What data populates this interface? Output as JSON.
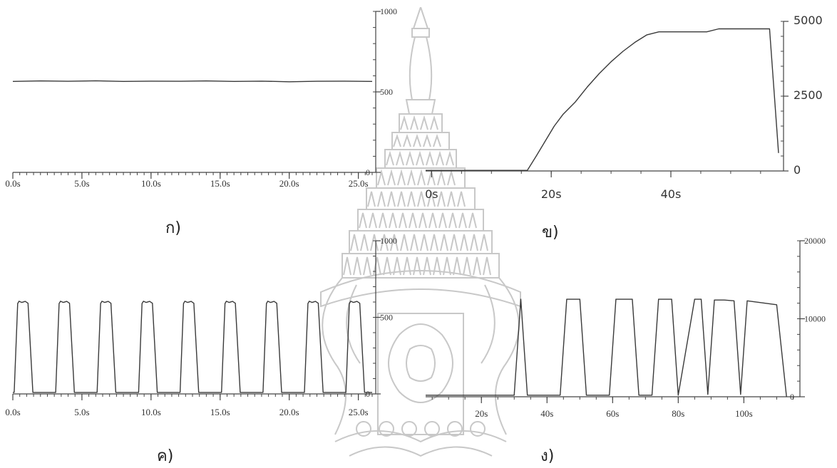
{
  "watermark": {
    "name": "university-seal-icon",
    "color": "#c8c8c8"
  },
  "colors": {
    "line": "#3a3a3a",
    "axis": "#444444"
  },
  "chart_data": [
    {
      "id": "a",
      "type": "line",
      "caption": "ก)",
      "x_ticks": [
        "0.0s",
        "5.0s",
        "10.0s",
        "15.0s",
        "20.0s",
        "25.0s"
      ],
      "x_tick_values": [
        0,
        5,
        10,
        15,
        20,
        25
      ],
      "xlim": [
        0,
        26
      ],
      "y_ticks": [
        "0",
        "500",
        "1000"
      ],
      "y_tick_values": [
        0,
        500,
        1000
      ],
      "ylim": [
        0,
        1000
      ],
      "y_axis_side": "right",
      "series": [
        {
          "x": [
            0,
            2,
            4,
            6,
            8,
            10,
            12,
            14,
            16,
            18,
            20,
            22,
            24,
            26
          ],
          "y": [
            565,
            568,
            566,
            569,
            565,
            567,
            566,
            568,
            565,
            567,
            563,
            566,
            567,
            565
          ]
        }
      ]
    },
    {
      "id": "b",
      "type": "line",
      "caption": "ข)",
      "x_ticks": [
        "0s",
        "20s",
        "40s"
      ],
      "x_tick_values": [
        0,
        20,
        40
      ],
      "xlim": [
        -1,
        58
      ],
      "y_ticks": [
        "0",
        "2500",
        "5000"
      ],
      "y_tick_values": [
        0,
        2500,
        5000
      ],
      "ylim": [
        0,
        5000
      ],
      "y_axis_side": "right",
      "series": [
        {
          "x": [
            -1,
            16,
            17.5,
            19,
            20.5,
            22,
            24,
            26,
            28,
            30,
            32,
            34,
            36,
            38,
            40,
            46,
            48,
            50,
            56.5,
            58
          ],
          "y": [
            20,
            20,
            500,
            1000,
            1500,
            1900,
            2300,
            2800,
            3250,
            3650,
            4000,
            4300,
            4550,
            4650,
            4650,
            4650,
            4750,
            4750,
            4750,
            600
          ]
        }
      ]
    },
    {
      "id": "c",
      "type": "line",
      "caption": "ค)",
      "x_ticks": [
        "0.0s",
        "5.0s",
        "10.0s",
        "15.0s",
        "20.0s",
        "25.0s"
      ],
      "x_tick_values": [
        0,
        5,
        10,
        15,
        20,
        25
      ],
      "xlim": [
        0,
        26
      ],
      "y_ticks": [
        "0",
        "500",
        "1000"
      ],
      "y_tick_values": [
        0,
        500,
        1000
      ],
      "ylim": [
        0,
        1000
      ],
      "y_axis_side": "right",
      "pulse": {
        "period": 3.0,
        "start": 0.1,
        "high": 600,
        "low": 10,
        "rise": 0.25,
        "width": 0.85,
        "count": 9
      }
    },
    {
      "id": "d",
      "type": "line",
      "caption": "ง)",
      "x_ticks": [
        "20s",
        "40s",
        "60s",
        "80s",
        "100s"
      ],
      "x_tick_values": [
        20,
        40,
        60,
        80,
        100
      ],
      "xlim": [
        3,
        116
      ],
      "y_ticks": [
        "0",
        "10000",
        "20000"
      ],
      "y_tick_values": [
        0,
        10000,
        20000
      ],
      "ylim": [
        0,
        20000
      ],
      "y_axis_side": "right",
      "series": [
        {
          "x": [
            3,
            30,
            32,
            34,
            44,
            46,
            50,
            52,
            59,
            61,
            66,
            68,
            72,
            74,
            78,
            80,
            85,
            87,
            89,
            91,
            94,
            97,
            99,
            101,
            110,
            113
          ],
          "y": [
            200,
            200,
            12500,
            200,
            200,
            12500,
            12500,
            200,
            200,
            12500,
            12500,
            200,
            200,
            12500,
            12500,
            200,
            12500,
            12500,
            300,
            12400,
            12400,
            12300,
            300,
            12300,
            11800,
            0
          ]
        }
      ]
    }
  ]
}
